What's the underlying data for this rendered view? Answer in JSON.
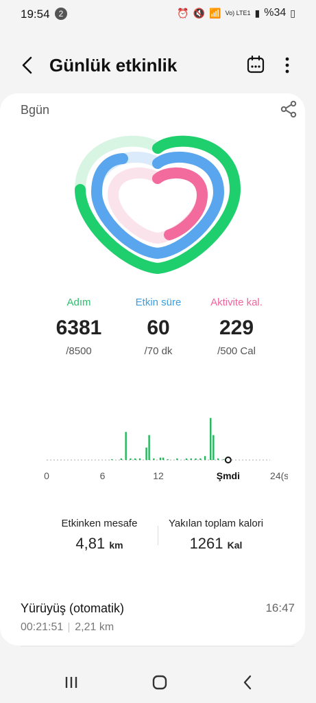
{
  "status": {
    "time": "19:54",
    "notification_count": "2",
    "network": "Vo) LTE1",
    "battery": "%34"
  },
  "header": {
    "title": "Günlük etkinlik"
  },
  "card": {
    "day": "Bgün"
  },
  "stats": [
    {
      "label": "Adım",
      "value": "6381",
      "goal": "/8500",
      "color": "#2bbf6a"
    },
    {
      "label": "Etkin süre",
      "value": "60",
      "goal": "/70 dk",
      "color": "#3a9ee0"
    },
    {
      "label": "Aktivite kal.",
      "value": "229",
      "goal": "/500 Cal",
      "color": "#f0649b"
    }
  ],
  "rings": {
    "steps_fraction": 0.75,
    "active_time_fraction": 0.857,
    "calories_fraction": 0.458
  },
  "chart_data": {
    "type": "bar",
    "x_ticks": [
      "0",
      "6",
      "12",
      "Şmdi",
      "24(s)"
    ],
    "now_hour": 19.5,
    "bars": [
      {
        "x": 7,
        "y": 1
      },
      {
        "x": 8,
        "y": 2
      },
      {
        "x": 8.5,
        "y": 36
      },
      {
        "x": 9,
        "y": 2
      },
      {
        "x": 9.5,
        "y": 2
      },
      {
        "x": 10,
        "y": 2
      },
      {
        "x": 10.7,
        "y": 16
      },
      {
        "x": 11,
        "y": 32
      },
      {
        "x": 11.5,
        "y": 2
      },
      {
        "x": 12.2,
        "y": 3
      },
      {
        "x": 12.5,
        "y": 3
      },
      {
        "x": 13,
        "y": 1
      },
      {
        "x": 14,
        "y": 2
      },
      {
        "x": 15,
        "y": 2
      },
      {
        "x": 15.5,
        "y": 2
      },
      {
        "x": 16,
        "y": 2
      },
      {
        "x": 16.5,
        "y": 2
      },
      {
        "x": 17,
        "y": 5
      },
      {
        "x": 17.6,
        "y": 54
      },
      {
        "x": 17.9,
        "y": 32
      },
      {
        "x": 18.4,
        "y": 2
      },
      {
        "x": 19,
        "y": 1
      }
    ],
    "ylim": [
      0,
      60
    ],
    "bar_color": "#1fb85a"
  },
  "summary": {
    "distance_label": "Etkinken mesafe",
    "distance_value": "4,81",
    "distance_unit": "km",
    "calories_label": "Yakılan toplam kalori",
    "calories_value": "1261",
    "calories_unit": "Kal"
  },
  "activity": {
    "title": "Yürüyüş (otomatik)",
    "time": "16:47",
    "duration": "00:21:51",
    "distance": "2,21 km"
  }
}
